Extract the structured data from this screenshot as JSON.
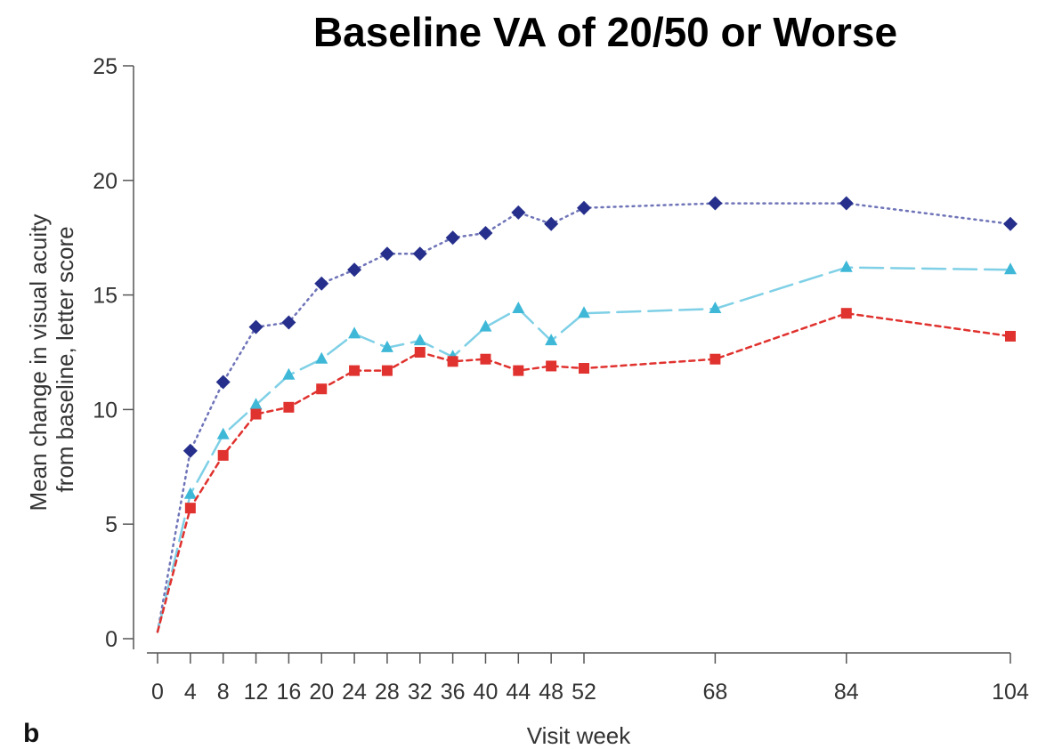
{
  "chart_data": {
    "type": "line",
    "title": "Baseline VA of 20/50 or Worse",
    "panel_label": "b",
    "xlabel": "Visit week",
    "ylabel": [
      "Mean change in visual acuity",
      "from baseline, letter score"
    ],
    "x": [
      0,
      4,
      8,
      12,
      16,
      20,
      24,
      28,
      32,
      36,
      40,
      44,
      48,
      52,
      68,
      84,
      104
    ],
    "x_ticks": [
      0,
      4,
      8,
      12,
      16,
      20,
      24,
      28,
      32,
      36,
      40,
      44,
      48,
      52,
      68,
      84,
      104
    ],
    "y_ticks": [
      0,
      5,
      10,
      15,
      20,
      25
    ],
    "ylim": [
      0,
      25
    ],
    "grid": false,
    "legend": "none",
    "series": [
      {
        "marker": "diamond",
        "line_style": "dotted",
        "color": "#26308C",
        "line_color": "#6F74B8",
        "values": [
          0.3,
          8.2,
          11.2,
          13.6,
          13.8,
          15.5,
          16.1,
          16.8,
          16.8,
          17.5,
          17.7,
          18.6,
          18.1,
          18.8,
          19.0,
          19.0,
          18.1
        ]
      },
      {
        "marker": "triangle",
        "line_style": "long-dash",
        "color": "#3FB8D8",
        "line_color": "#7FD0E6",
        "values": [
          0.3,
          6.3,
          8.9,
          10.2,
          11.5,
          12.2,
          13.3,
          12.7,
          13.0,
          12.3,
          13.6,
          14.4,
          13.0,
          14.2,
          14.4,
          16.2,
          16.1
        ]
      },
      {
        "marker": "square",
        "line_style": "short-dash",
        "color": "#E0322E",
        "line_color": "#E0322E",
        "values": [
          0.3,
          5.7,
          8.0,
          9.8,
          10.1,
          10.9,
          11.7,
          11.7,
          12.5,
          12.1,
          12.2,
          11.7,
          11.9,
          11.8,
          12.2,
          14.2,
          13.2
        ]
      }
    ]
  }
}
